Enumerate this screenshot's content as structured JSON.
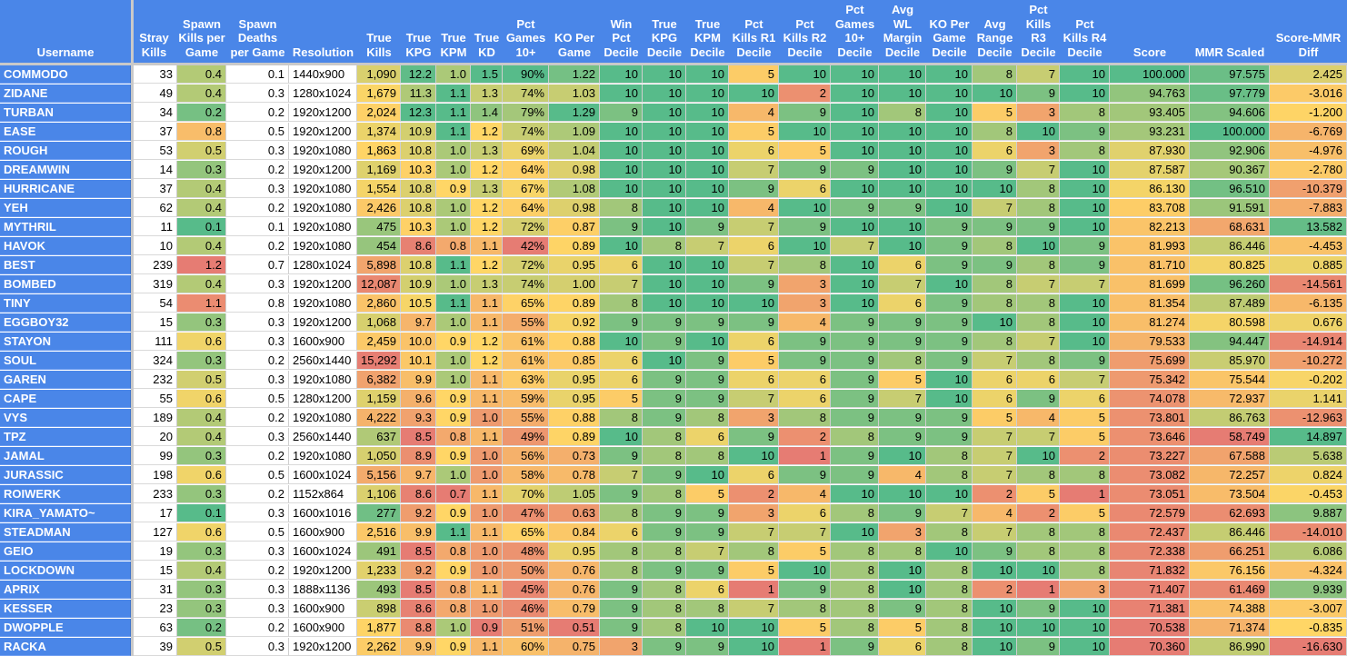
{
  "columns": [
    {
      "key": "username",
      "label": "Username",
      "align": "l"
    },
    {
      "key": "stray",
      "label": "Stray\nKills",
      "align": "r"
    },
    {
      "key": "spk",
      "label": "Spawn\nKills per\nGame",
      "align": "r"
    },
    {
      "key": "spd",
      "label": "Spawn\nDeaths\nper Game",
      "align": "r"
    },
    {
      "key": "res",
      "label": "Resolution",
      "align": "l"
    },
    {
      "key": "tk",
      "label": "True\nKills",
      "align": "r"
    },
    {
      "key": "kpg",
      "label": "True\nKPG",
      "align": "r"
    },
    {
      "key": "kpm",
      "label": "True\nKPM",
      "align": "r"
    },
    {
      "key": "kd",
      "label": "True\nKD",
      "align": "r"
    },
    {
      "key": "pg10",
      "label": "Pct\nGames\n10+",
      "align": "r"
    },
    {
      "key": "ko",
      "label": "KO Per\nGame",
      "align": "r"
    },
    {
      "key": "winpd",
      "label": "Win\nPct\nDecile",
      "align": "r"
    },
    {
      "key": "kpgd",
      "label": "True\nKPG\nDecile",
      "align": "r"
    },
    {
      "key": "kpmd",
      "label": "True\nKPM\nDecile",
      "align": "r"
    },
    {
      "key": "r1d",
      "label": "Pct\nKills R1\nDecile",
      "align": "r"
    },
    {
      "key": "r2d",
      "label": "Pct\nKills R2\nDecile",
      "align": "r"
    },
    {
      "key": "g10d",
      "label": "Pct\nGames\n10+\nDecile",
      "align": "r"
    },
    {
      "key": "wld",
      "label": "Avg\nWL\nMargin\nDecile",
      "align": "r"
    },
    {
      "key": "kod",
      "label": "KO Per\nGame\nDecile",
      "align": "r"
    },
    {
      "key": "rngd",
      "label": "Avg\nRange\nDecile",
      "align": "r"
    },
    {
      "key": "r3d",
      "label": "Pct\nKills\nR3\nDecile",
      "align": "r"
    },
    {
      "key": "r4d",
      "label": "Pct\nKills R4\nDecile",
      "align": "r"
    },
    {
      "key": "score",
      "label": "Score",
      "align": "r"
    },
    {
      "key": "mmr",
      "label": "MMR Scaled",
      "align": "r"
    },
    {
      "key": "diff",
      "label": "Score-MMR\nDiff",
      "align": "r"
    }
  ],
  "rows": [
    [
      "COMMODO",
      "33",
      "0.4",
      "0.1",
      "1440x900",
      "1,090",
      "12.2",
      "1.0",
      "1.5",
      "90%",
      "1.22",
      "10",
      "10",
      "10",
      "5",
      "10",
      "10",
      "10",
      "10",
      "8",
      "7",
      "10",
      "100.000",
      "97.575",
      "2.425"
    ],
    [
      "ZIDANE",
      "49",
      "0.4",
      "0.3",
      "1280x1024",
      "1,679",
      "11.3",
      "1.1",
      "1.3",
      "74%",
      "1.03",
      "10",
      "10",
      "10",
      "10",
      "2",
      "10",
      "10",
      "10",
      "10",
      "9",
      "10",
      "94.763",
      "97.779",
      "-3.016"
    ],
    [
      "TURBAN",
      "34",
      "0.2",
      "0.2",
      "1920x1200",
      "2,024",
      "12.3",
      "1.1",
      "1.4",
      "79%",
      "1.29",
      "9",
      "10",
      "10",
      "4",
      "9",
      "10",
      "8",
      "10",
      "5",
      "3",
      "8",
      "93.405",
      "94.606",
      "-1.200"
    ],
    [
      "EASE",
      "37",
      "0.8",
      "0.5",
      "1920x1200",
      "1,374",
      "10.9",
      "1.1",
      "1.2",
      "74%",
      "1.09",
      "10",
      "10",
      "10",
      "5",
      "10",
      "10",
      "10",
      "10",
      "8",
      "10",
      "9",
      "93.231",
      "100.000",
      "-6.769"
    ],
    [
      "ROUGH",
      "53",
      "0.5",
      "0.3",
      "1920x1080",
      "1,863",
      "10.8",
      "1.0",
      "1.3",
      "69%",
      "1.04",
      "10",
      "10",
      "10",
      "6",
      "5",
      "10",
      "10",
      "10",
      "6",
      "3",
      "8",
      "87.930",
      "92.906",
      "-4.976"
    ],
    [
      "DREAMWIN",
      "14",
      "0.3",
      "0.2",
      "1920x1200",
      "1,169",
      "10.3",
      "1.0",
      "1.2",
      "64%",
      "0.98",
      "10",
      "10",
      "10",
      "7",
      "9",
      "9",
      "10",
      "10",
      "9",
      "7",
      "10",
      "87.587",
      "90.367",
      "-2.780"
    ],
    [
      "HURRICANE",
      "37",
      "0.4",
      "0.3",
      "1920x1080",
      "1,554",
      "10.8",
      "0.9",
      "1.3",
      "67%",
      "1.08",
      "10",
      "10",
      "10",
      "9",
      "6",
      "10",
      "10",
      "10",
      "10",
      "8",
      "10",
      "86.130",
      "96.510",
      "-10.379"
    ],
    [
      "YEH",
      "62",
      "0.4",
      "0.2",
      "1920x1080",
      "2,426",
      "10.8",
      "1.0",
      "1.2",
      "64%",
      "0.98",
      "8",
      "10",
      "10",
      "4",
      "10",
      "9",
      "9",
      "10",
      "7",
      "8",
      "10",
      "83.708",
      "91.591",
      "-7.883"
    ],
    [
      "MYTHRIL",
      "11",
      "0.1",
      "0.1",
      "1920x1080",
      "475",
      "10.3",
      "1.0",
      "1.2",
      "72%",
      "0.87",
      "9",
      "10",
      "9",
      "7",
      "9",
      "10",
      "10",
      "9",
      "9",
      "9",
      "10",
      "82.213",
      "68.631",
      "13.582"
    ],
    [
      "HAVOK",
      "10",
      "0.4",
      "0.2",
      "1920x1080",
      "454",
      "8.6",
      "0.8",
      "1.1",
      "42%",
      "0.89",
      "10",
      "8",
      "7",
      "6",
      "10",
      "7",
      "10",
      "9",
      "8",
      "10",
      "9",
      "81.993",
      "86.446",
      "-4.453"
    ],
    [
      "BEST",
      "239",
      "1.2",
      "0.7",
      "1280x1024",
      "5,898",
      "10.8",
      "1.1",
      "1.2",
      "72%",
      "0.95",
      "6",
      "10",
      "10",
      "7",
      "8",
      "10",
      "6",
      "9",
      "9",
      "8",
      "9",
      "81.710",
      "80.825",
      "0.885"
    ],
    [
      "BOMBED",
      "319",
      "0.4",
      "0.3",
      "1920x1200",
      "12,087",
      "10.9",
      "1.0",
      "1.3",
      "74%",
      "1.00",
      "7",
      "10",
      "10",
      "9",
      "3",
      "10",
      "7",
      "10",
      "8",
      "7",
      "7",
      "81.699",
      "96.260",
      "-14.561"
    ],
    [
      "TINY",
      "54",
      "1.1",
      "0.8",
      "1920x1080",
      "2,860",
      "10.5",
      "1.1",
      "1.1",
      "65%",
      "0.89",
      "8",
      "10",
      "10",
      "10",
      "3",
      "10",
      "6",
      "9",
      "8",
      "8",
      "10",
      "81.354",
      "87.489",
      "-6.135"
    ],
    [
      "EGGBOY32",
      "15",
      "0.3",
      "0.3",
      "1920x1200",
      "1,068",
      "9.7",
      "1.0",
      "1.1",
      "55%",
      "0.92",
      "9",
      "9",
      "9",
      "9",
      "4",
      "9",
      "9",
      "9",
      "10",
      "8",
      "10",
      "81.274",
      "80.598",
      "0.676"
    ],
    [
      "STAYON",
      "111",
      "0.6",
      "0.3",
      "1600x900",
      "2,459",
      "10.0",
      "0.9",
      "1.2",
      "61%",
      "0.88",
      "10",
      "9",
      "10",
      "6",
      "9",
      "9",
      "9",
      "9",
      "8",
      "7",
      "10",
      "79.533",
      "94.447",
      "-14.914"
    ],
    [
      "SOUL",
      "324",
      "0.3",
      "0.2",
      "2560x1440",
      "15,292",
      "10.1",
      "1.0",
      "1.2",
      "61%",
      "0.85",
      "6",
      "10",
      "9",
      "5",
      "9",
      "9",
      "8",
      "9",
      "7",
      "8",
      "9",
      "75.699",
      "85.970",
      "-10.272"
    ],
    [
      "GAREN",
      "232",
      "0.5",
      "0.3",
      "1920x1080",
      "6,382",
      "9.9",
      "1.0",
      "1.1",
      "63%",
      "0.95",
      "6",
      "9",
      "9",
      "6",
      "6",
      "9",
      "5",
      "10",
      "6",
      "6",
      "7",
      "75.342",
      "75.544",
      "-0.202"
    ],
    [
      "CAPE",
      "55",
      "0.6",
      "0.5",
      "1280x1200",
      "1,159",
      "9.6",
      "0.9",
      "1.1",
      "59%",
      "0.95",
      "5",
      "9",
      "9",
      "7",
      "6",
      "9",
      "7",
      "10",
      "6",
      "9",
      "6",
      "74.078",
      "72.937",
      "1.141"
    ],
    [
      "VYS",
      "189",
      "0.4",
      "0.2",
      "1920x1080",
      "4,222",
      "9.3",
      "0.9",
      "1.0",
      "55%",
      "0.88",
      "8",
      "9",
      "8",
      "3",
      "8",
      "9",
      "9",
      "9",
      "5",
      "4",
      "5",
      "73.801",
      "86.763",
      "-12.963"
    ],
    [
      "TPZ",
      "20",
      "0.4",
      "0.3",
      "2560x1440",
      "637",
      "8.5",
      "0.8",
      "1.1",
      "49%",
      "0.89",
      "10",
      "8",
      "6",
      "9",
      "2",
      "8",
      "9",
      "9",
      "7",
      "7",
      "5",
      "73.646",
      "58.749",
      "14.897"
    ],
    [
      "JAMAL",
      "99",
      "0.3",
      "0.2",
      "1920x1080",
      "1,050",
      "8.9",
      "0.9",
      "1.0",
      "56%",
      "0.73",
      "9",
      "8",
      "8",
      "10",
      "1",
      "9",
      "10",
      "8",
      "7",
      "10",
      "2",
      "73.227",
      "67.588",
      "5.638"
    ],
    [
      "JURASSIC",
      "198",
      "0.6",
      "0.5",
      "1600x1024",
      "5,156",
      "9.7",
      "1.0",
      "1.0",
      "58%",
      "0.78",
      "7",
      "9",
      "10",
      "6",
      "9",
      "9",
      "4",
      "8",
      "7",
      "8",
      "8",
      "73.082",
      "72.257",
      "0.824"
    ],
    [
      "ROIWERK",
      "233",
      "0.3",
      "0.2",
      "1152x864",
      "1,106",
      "8.6",
      "0.7",
      "1.1",
      "70%",
      "1.05",
      "9",
      "8",
      "5",
      "2",
      "4",
      "10",
      "10",
      "10",
      "2",
      "5",
      "1",
      "73.051",
      "73.504",
      "-0.453"
    ],
    [
      "KIRA_YAMATO~",
      "17",
      "0.1",
      "0.3",
      "1600x1016",
      "277",
      "9.2",
      "0.9",
      "1.0",
      "47%",
      "0.63",
      "8",
      "9",
      "9",
      "3",
      "6",
      "8",
      "9",
      "7",
      "4",
      "2",
      "5",
      "72.579",
      "62.693",
      "9.887"
    ],
    [
      "STEADMAN",
      "127",
      "0.6",
      "0.5",
      "1600x900",
      "2,516",
      "9.9",
      "1.1",
      "1.1",
      "65%",
      "0.84",
      "6",
      "9",
      "9",
      "7",
      "7",
      "10",
      "3",
      "8",
      "7",
      "8",
      "8",
      "72.437",
      "86.446",
      "-14.010"
    ],
    [
      "GEIO",
      "19",
      "0.3",
      "0.3",
      "1600x1024",
      "491",
      "8.5",
      "0.8",
      "1.0",
      "48%",
      "0.95",
      "8",
      "8",
      "7",
      "8",
      "5",
      "8",
      "8",
      "10",
      "9",
      "8",
      "8",
      "72.338",
      "66.251",
      "6.086"
    ],
    [
      "LOCKDOWN",
      "15",
      "0.4",
      "0.2",
      "1920x1200",
      "1,233",
      "9.2",
      "0.9",
      "1.0",
      "50%",
      "0.76",
      "8",
      "9",
      "9",
      "5",
      "10",
      "8",
      "10",
      "8",
      "10",
      "10",
      "8",
      "71.832",
      "76.156",
      "-4.324"
    ],
    [
      "APRIX",
      "31",
      "0.3",
      "0.3",
      "1888x1136",
      "493",
      "8.5",
      "0.8",
      "1.1",
      "45%",
      "0.76",
      "9",
      "8",
      "6",
      "1",
      "9",
      "8",
      "10",
      "8",
      "2",
      "1",
      "3",
      "71.407",
      "61.469",
      "9.939"
    ],
    [
      "KESSER",
      "23",
      "0.3",
      "0.3",
      "1600x900",
      "898",
      "8.6",
      "0.8",
      "1.0",
      "46%",
      "0.79",
      "9",
      "8",
      "8",
      "7",
      "8",
      "8",
      "9",
      "8",
      "10",
      "9",
      "10",
      "71.381",
      "74.388",
      "-3.007"
    ],
    [
      "DWOPPLE",
      "63",
      "0.2",
      "0.2",
      "1600x900",
      "1,877",
      "8.8",
      "1.0",
      "0.9",
      "51%",
      "0.51",
      "9",
      "8",
      "10",
      "10",
      "5",
      "8",
      "5",
      "8",
      "10",
      "10",
      "10",
      "70.538",
      "71.374",
      "-0.835"
    ],
    [
      "RACKA",
      "39",
      "0.5",
      "0.3",
      "1920x1200",
      "2,262",
      "9.9",
      "0.9",
      "1.1",
      "60%",
      "0.75",
      "3",
      "9",
      "9",
      "10",
      "1",
      "9",
      "6",
      "8",
      "10",
      "9",
      "10",
      "70.360",
      "86.990",
      "-16.630"
    ]
  ],
  "scale_colors": {
    "red": "#e67c73",
    "yellow": "#ffd666",
    "green": "#57bb8a",
    "header_blue": "#4a86e8"
  }
}
